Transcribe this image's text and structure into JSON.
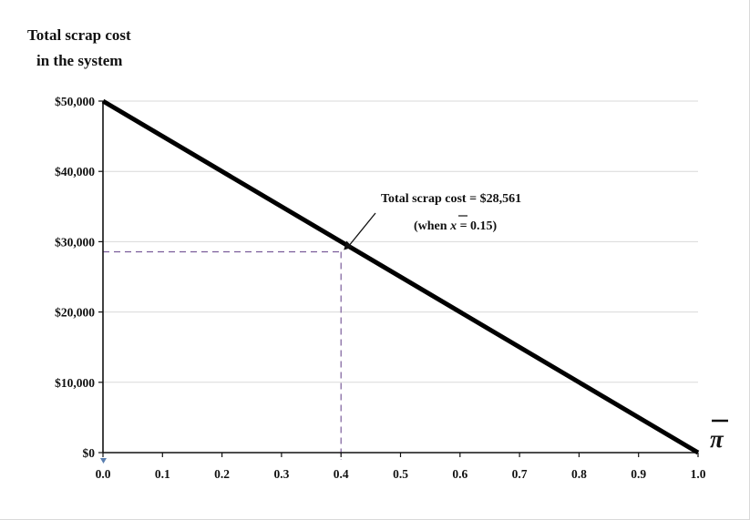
{
  "chart_data": {
    "type": "line",
    "title": "",
    "ylabel_lines": [
      "Total scrap cost",
      "in the system"
    ],
    "xlabel": "π",
    "x_ticks": [
      0.0,
      0.1,
      0.2,
      0.3,
      0.4,
      0.5,
      0.6,
      0.7,
      0.8,
      0.9,
      1.0
    ],
    "x_tick_labels": [
      "0.0",
      "0.1",
      "0.2",
      "0.3",
      "0.4",
      "0.5",
      "0.6",
      "0.7",
      "0.8",
      "0.9",
      "1.0"
    ],
    "y_ticks": [
      0,
      10000,
      20000,
      30000,
      40000,
      50000
    ],
    "y_tick_labels": [
      "$0",
      "$10,000",
      "$20,000",
      "$30,000",
      "$40,000",
      "$50,000"
    ],
    "xlim": [
      0,
      1
    ],
    "ylim": [
      0,
      50000
    ],
    "grid": "horizontal",
    "series": [
      {
        "x": [
          0.0,
          1.0
        ],
        "y": [
          50000,
          0
        ]
      }
    ],
    "highlight_point": {
      "x": 0.4,
      "y": 28561
    },
    "annotation_lines": [
      "Total scrap cost = $28,561",
      "(when ",
      "x",
      " = 0.15)"
    ],
    "colors": {
      "line": "#000000",
      "grid": "#d9d9d9",
      "guide": "#7a5c9a",
      "text": "#111111"
    }
  }
}
